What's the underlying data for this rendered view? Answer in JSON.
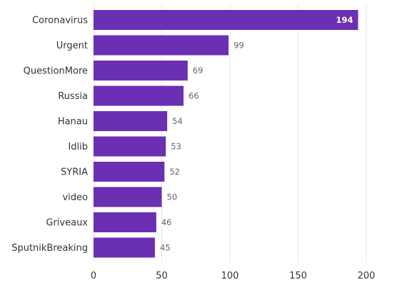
{
  "chart_data": {
    "type": "bar",
    "orientation": "horizontal",
    "categories": [
      "Coronavirus",
      "Urgent",
      "QuestionMore",
      "Russia",
      "Hanau",
      "Idlib",
      "SYRIA",
      "video",
      "Griveaux",
      "SputnikBreaking"
    ],
    "values": [
      194,
      99,
      69,
      66,
      54,
      53,
      52,
      50,
      46,
      45
    ],
    "x_ticks": [
      0,
      50,
      100,
      150,
      200
    ],
    "xlim": [
      0,
      200
    ],
    "grid": "vertical",
    "colors": {
      "bar": "#6b2fb3"
    }
  }
}
